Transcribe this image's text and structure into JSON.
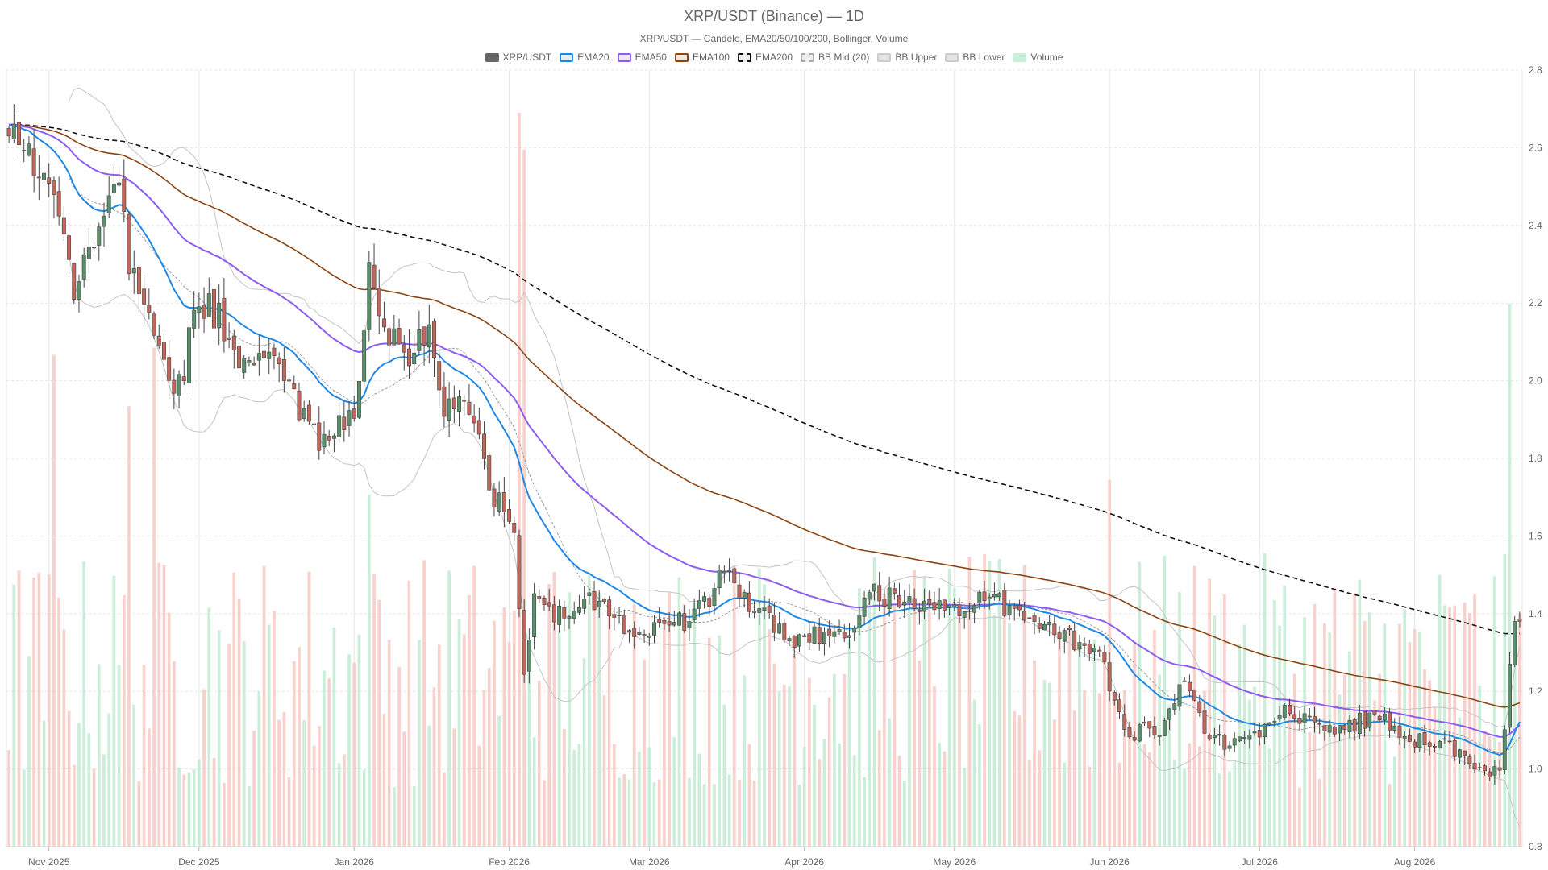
{
  "chart_data": {
    "type": "candlestick",
    "title": "XRP/USDT (Binance) — 1D",
    "subtitle": "XRP/USDT — Candele, EMA20/50/100/200, Bollinger, Volume",
    "legend": [
      {
        "label": "XRP/USDT",
        "color": "#666666",
        "fill": "#666666",
        "dashed": false
      },
      {
        "label": "EMA20",
        "color": "#1e88e5",
        "fill": "#e3eef9",
        "dashed": false
      },
      {
        "label": "EMA50",
        "color": "#8e5cf0",
        "fill": "#eee7fb",
        "dashed": false
      },
      {
        "label": "EMA100",
        "color": "#8b4513",
        "fill": "#f3e6dc",
        "dashed": false
      },
      {
        "label": "EMA200",
        "color": "#111111",
        "fill": "#eeeeee",
        "dashed": true
      },
      {
        "label": "BB Mid (20)",
        "color": "#aaaaaa",
        "fill": "#eeeeee",
        "dashed": true
      },
      {
        "label": "BB Upper",
        "color": "#cccccc",
        "fill": "#e4e4e4",
        "dashed": false
      },
      {
        "label": "BB Lower",
        "color": "#cccccc",
        "fill": "#e4e4e4",
        "dashed": false
      },
      {
        "label": "Volume",
        "color": "#c8efd8",
        "fill": "#c8efd8",
        "dashed": false
      }
    ],
    "x_start": "2025-10-24",
    "x_end": "2026-08-22",
    "x_ticks": [
      {
        "date": "2025-11-01",
        "label": "Nov 2025"
      },
      {
        "date": "2025-12-01",
        "label": "Dec 2025"
      },
      {
        "date": "2026-01-01",
        "label": "Jan 2026"
      },
      {
        "date": "2026-02-01",
        "label": "Feb 2026"
      },
      {
        "date": "2026-03-01",
        "label": "Mar 2026"
      },
      {
        "date": "2026-04-01",
        "label": "Apr 2026"
      },
      {
        "date": "2026-05-01",
        "label": "May 2026"
      },
      {
        "date": "2026-06-01",
        "label": "Jun 2026"
      },
      {
        "date": "2026-07-01",
        "label": "Jul 2026"
      },
      {
        "date": "2026-08-01",
        "label": "Aug 2026"
      }
    ],
    "y_range": [
      0.8,
      2.8
    ],
    "y_ticks": [
      0.8,
      1.0,
      1.2,
      1.4,
      1.6,
      1.8,
      2.0,
      2.2,
      2.4,
      2.6,
      2.8
    ],
    "grid": true,
    "colors": {
      "up": "#5a8f6b",
      "down": "#c0665a",
      "volume_up": "#bfe9d0",
      "volume_down": "#f6c6bf"
    },
    "close_anchors": [
      [
        "2025-10-24",
        2.64
      ],
      [
        "2025-10-28",
        2.6
      ],
      [
        "2025-11-02",
        2.47
      ],
      [
        "2025-11-04",
        2.36
      ],
      [
        "2025-11-06",
        2.24
      ],
      [
        "2025-11-11",
        2.35
      ],
      [
        "2025-11-14",
        2.52
      ],
      [
        "2025-11-18",
        2.26
      ],
      [
        "2025-11-22",
        2.14
      ],
      [
        "2025-11-27",
        1.98
      ],
      [
        "2025-12-01",
        2.22
      ],
      [
        "2025-12-05",
        2.16
      ],
      [
        "2025-12-10",
        2.05
      ],
      [
        "2025-12-15",
        2.07
      ],
      [
        "2025-12-20",
        1.96
      ],
      [
        "2025-12-25",
        1.85
      ],
      [
        "2026-01-01",
        1.9
      ],
      [
        "2026-01-04",
        2.3
      ],
      [
        "2026-01-07",
        2.14
      ],
      [
        "2026-01-12",
        2.08
      ],
      [
        "2026-01-16",
        2.13
      ],
      [
        "2026-01-19",
        1.91
      ],
      [
        "2026-01-24",
        1.94
      ],
      [
        "2026-01-28",
        1.73
      ],
      [
        "2026-02-02",
        1.62
      ],
      [
        "2026-02-04",
        1.22
      ],
      [
        "2026-02-06",
        1.45
      ],
      [
        "2026-02-12",
        1.38
      ],
      [
        "2026-02-16",
        1.46
      ],
      [
        "2026-02-22",
        1.38
      ],
      [
        "2026-02-28",
        1.36
      ],
      [
        "2026-03-06",
        1.37
      ],
      [
        "2026-03-12",
        1.42
      ],
      [
        "2026-03-16",
        1.51
      ],
      [
        "2026-03-22",
        1.42
      ],
      [
        "2026-03-29",
        1.33
      ],
      [
        "2026-04-05",
        1.34
      ],
      [
        "2026-04-11",
        1.37
      ],
      [
        "2026-04-15",
        1.46
      ],
      [
        "2026-04-20",
        1.42
      ],
      [
        "2026-04-26",
        1.4
      ],
      [
        "2026-05-02",
        1.41
      ],
      [
        "2026-05-08",
        1.45
      ],
      [
        "2026-05-14",
        1.4
      ],
      [
        "2026-05-20",
        1.36
      ],
      [
        "2026-05-25",
        1.33
      ],
      [
        "2026-05-30",
        1.32
      ],
      [
        "2026-06-01",
        1.22
      ],
      [
        "2026-06-05",
        1.08
      ],
      [
        "2026-06-08",
        1.12
      ],
      [
        "2026-06-12",
        1.1
      ],
      [
        "2026-06-15",
        1.23
      ],
      [
        "2026-06-20",
        1.11
      ],
      [
        "2026-06-25",
        1.06
      ],
      [
        "2026-07-01",
        1.08
      ],
      [
        "2026-07-06",
        1.15
      ],
      [
        "2026-07-13",
        1.1
      ],
      [
        "2026-07-20",
        1.11
      ],
      [
        "2026-07-24",
        1.15
      ],
      [
        "2026-07-28",
        1.1
      ],
      [
        "2026-08-02",
        1.07
      ],
      [
        "2026-08-07",
        1.07
      ],
      [
        "2026-08-12",
        1.01
      ],
      [
        "2026-08-16",
        1.0
      ],
      [
        "2026-08-18",
        1.0
      ],
      [
        "2026-08-19",
        1.1
      ],
      [
        "2026-08-20",
        1.27
      ],
      [
        "2026-08-21",
        1.38
      ]
    ],
    "volume_range": [
      0,
      1.0
    ],
    "volume_spikes": [
      [
        "2025-11-02",
        0.67
      ],
      [
        "2025-11-17",
        0.6
      ],
      [
        "2025-11-22",
        0.68
      ],
      [
        "2026-01-04",
        0.48
      ],
      [
        "2026-02-03",
        1.0
      ],
      [
        "2026-02-04",
        0.95
      ],
      [
        "2026-06-01",
        0.5
      ],
      [
        "2026-08-20",
        0.74
      ]
    ]
  }
}
